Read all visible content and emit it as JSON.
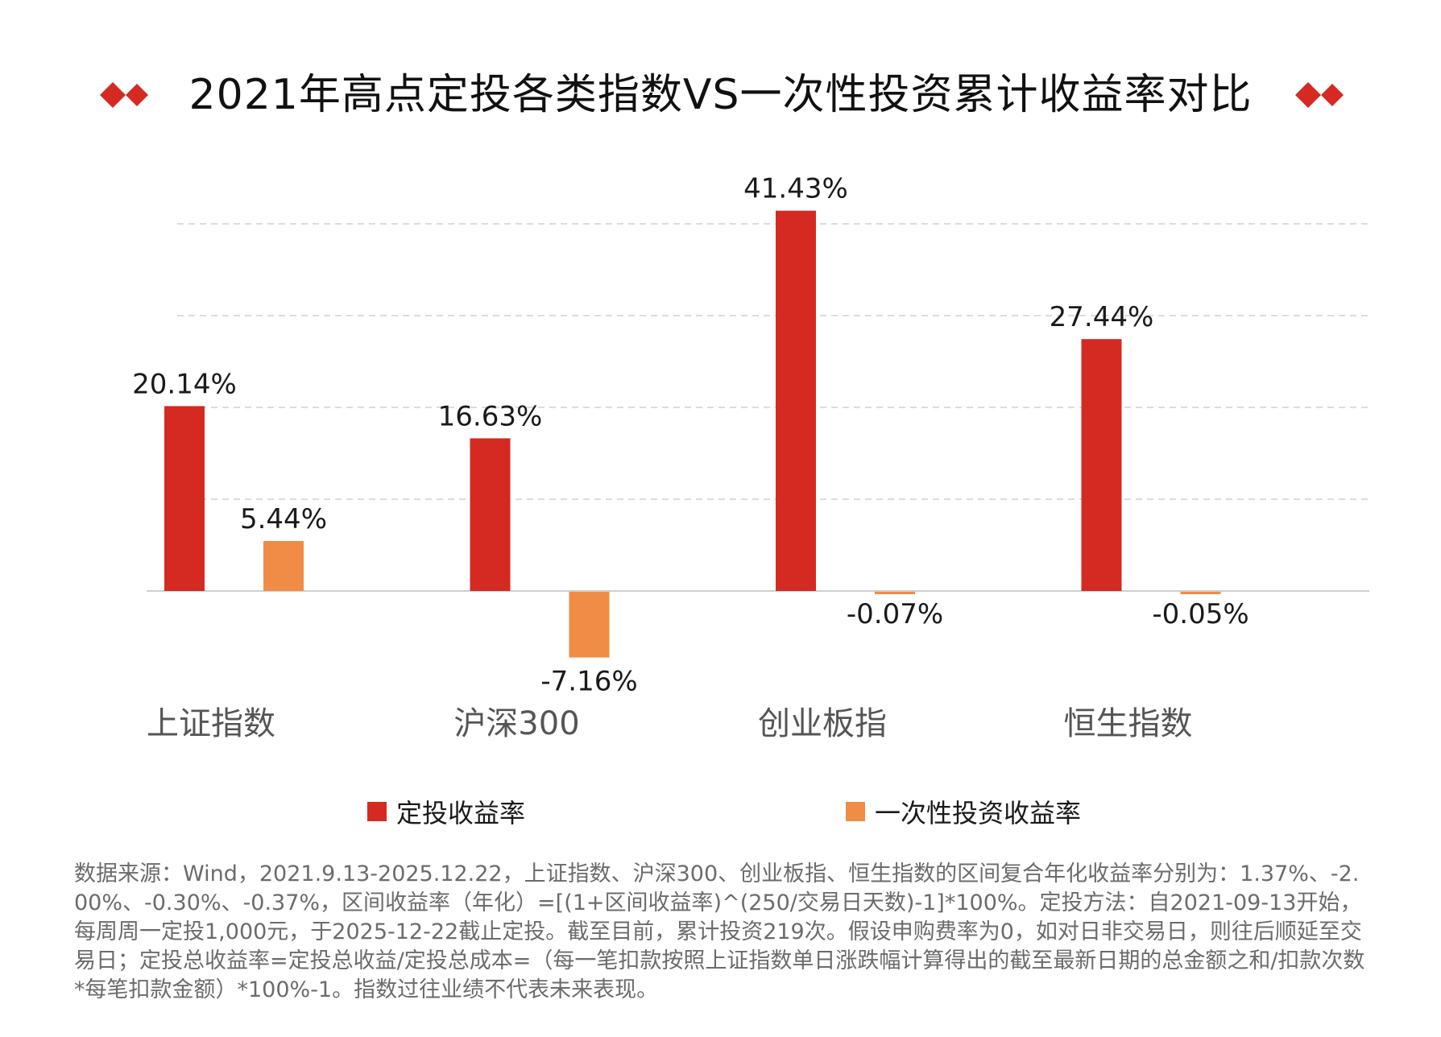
{
  "title": "2021年高点定投各类指数VS一次性投资累计收益率对比",
  "colors": {
    "dca": "#d42a22",
    "lump": "#f08c45",
    "grid": "#dcdcdc",
    "axis": "#cfcfcf",
    "deco": "#d42a22"
  },
  "chart_data": {
    "type": "bar",
    "title": "2021年高点定投各类指数VS一次性投资累计收益率对比",
    "categories": [
      "上证指数",
      "沪深300",
      "创业板指",
      "恒生指数"
    ],
    "series": [
      {
        "name": "定投收益率",
        "values": [
          20.14,
          16.63,
          41.43,
          27.44
        ],
        "labels": [
          "20.14%",
          "16.63%",
          "41.43%",
          "27.44%"
        ]
      },
      {
        "name": "一次性投资收益率",
        "values": [
          5.44,
          -7.16,
          -0.07,
          -0.05
        ],
        "labels": [
          "5.44%",
          "-7.16%",
          "-0.07%",
          "-0.05%"
        ]
      }
    ],
    "ylim": [
      -10,
      45
    ],
    "gridlines": [
      10,
      20,
      30,
      40
    ],
    "grid": true,
    "legend": "bottom",
    "xlabel": "",
    "ylabel": ""
  },
  "legend": {
    "items": [
      "定投收益率",
      "一次性投资收益率"
    ]
  },
  "footnote": "数据来源：Wind，2021.9.13-2025.12.22，上证指数、沪深300、创业板指、恒生指数的区间复合年化收益率分别为：1.37%、-2.00%、-0.30%、-0.37%，区间收益率（年化）=[(1+区间收益率)^(250/交易日天数)-1]*100%。定投方法：自2021-09-13开始，每周周一定投1,000元，于2025-12-22截止定投。截至目前，累计投资219次。假设申购费率为0，如对日非交易日，则往后顺延至交易日；定投总收益率=定投总收益/定投总成本=（每一笔扣款按照上证指数单日涨跌幅计算得出的截至最新日期的总金额之和/扣款次数*每笔扣款金额）*100%-1。指数过往业绩不代表未来表现。"
}
